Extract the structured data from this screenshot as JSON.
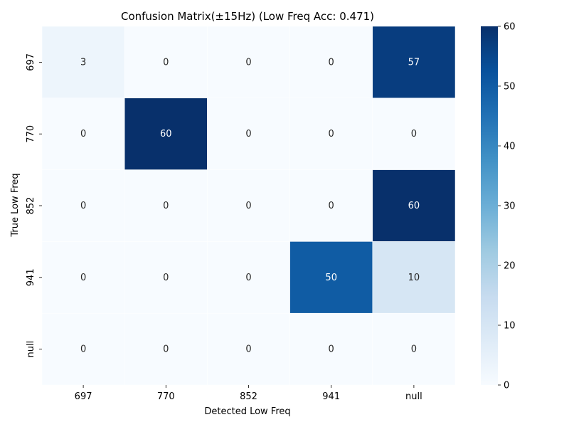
{
  "chart_data": {
    "type": "heatmap",
    "title": "Confusion Matrix(±15Hz) (Low Freq Acc: 0.471)",
    "xlabel": "Detected Low Freq",
    "ylabel": "True Low Freq",
    "x_categories": [
      "697",
      "770",
      "852",
      "941",
      "null"
    ],
    "y_categories": [
      "697",
      "770",
      "852",
      "941",
      "null"
    ],
    "matrix": [
      [
        3,
        0,
        0,
        0,
        57
      ],
      [
        0,
        60,
        0,
        0,
        0
      ],
      [
        0,
        0,
        0,
        0,
        60
      ],
      [
        0,
        0,
        0,
        50,
        10
      ],
      [
        0,
        0,
        0,
        0,
        0
      ]
    ],
    "colorbar": {
      "min": 0,
      "max": 60,
      "ticks": [
        "0",
        "10",
        "20",
        "30",
        "40",
        "50",
        "60"
      ],
      "colormap": "Blues"
    },
    "colors": {
      "low": "#f7fbff",
      "high": "#08306b",
      "text_dark": "#262626",
      "text_light": "#ffffff"
    }
  }
}
